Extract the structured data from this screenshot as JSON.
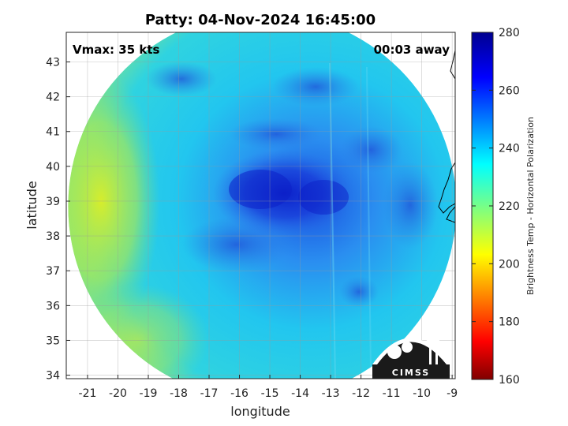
{
  "title": "Patty: 04-Nov-2024 16:45:00",
  "vmax_label": "Vmax: 35 kts",
  "time_offset_label": "00:03 away",
  "xlabel": "longitude",
  "ylabel": "latitude",
  "x_ticks": [
    "-21",
    "-20",
    "-19",
    "-18",
    "-17",
    "-16",
    "-15",
    "-14",
    "-13",
    "-12",
    "-11",
    "-10",
    "-9"
  ],
  "y_ticks": [
    "34",
    "35",
    "36",
    "37",
    "38",
    "39",
    "40",
    "41",
    "42",
    "43"
  ],
  "x_range": [
    -21.7,
    -8.9
  ],
  "y_range": [
    33.9,
    43.85
  ],
  "colorbar": {
    "label": "Brightness Temp - Horizontal Polarization",
    "ticks": [
      "160",
      "180",
      "200",
      "220",
      "240",
      "260",
      "280"
    ],
    "range": [
      160,
      280
    ],
    "colormap": "jet"
  },
  "swath": {
    "center_lon": -15.25,
    "center_lat": 38.85,
    "storm_center_lon": -15.0,
    "storm_center_lat": 39.1
  },
  "logo_text": "CIMSS",
  "colors": {
    "cold_core": "#1020d0",
    "cyan_bg": "#20c8f0",
    "warm_edge": "#d8f020"
  }
}
